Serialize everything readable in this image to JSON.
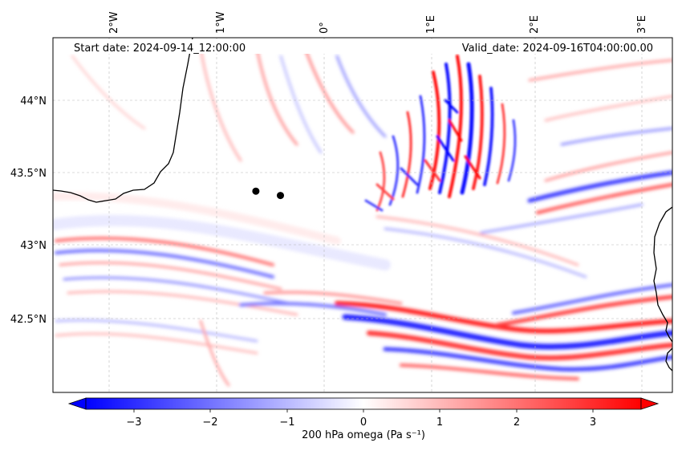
{
  "map": {
    "header": {
      "start_label": "Start date: 2024-09-14_12:00:00",
      "valid_label": "Valid_date: 2024-09-16T04:00:00.00"
    },
    "lon_ticks": [
      "2°W",
      "1°W",
      "0°",
      "1°E",
      "2°E",
      "3°E"
    ],
    "lat_ticks": [
      "44°N",
      "43.5°N",
      "43°N",
      "42.5°N"
    ],
    "extent": {
      "lon_min": -2.55,
      "lon_max": 3.25,
      "lat_min": 42.0,
      "lat_max": 44.45
    },
    "markers": [
      {
        "lon": -0.65,
        "lat": 43.39
      },
      {
        "lon": -0.42,
        "lat": 43.36
      }
    ],
    "field_variable": "200 hPa omega"
  },
  "colorbar": {
    "label": "200 hPa omega (Pa s⁻¹)",
    "ticks": [
      "−3",
      "−2",
      "−1",
      "0",
      "1",
      "2",
      "3"
    ],
    "min": -3.6,
    "max": 3.6,
    "colors": {
      "low": "#0000ff",
      "mid": "#ffffff",
      "high": "#ff0000"
    },
    "extend": "both"
  }
}
